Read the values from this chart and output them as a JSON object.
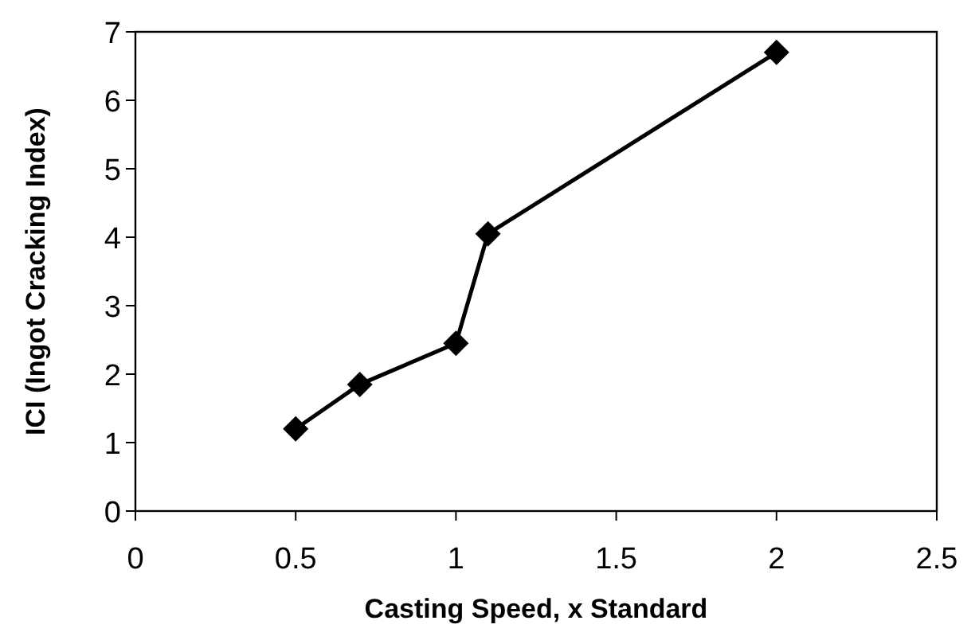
{
  "chart_data": {
    "type": "line",
    "xlabel": "Casting Speed, x Standard",
    "ylabel": "ICI (Ingot Cracking Index)",
    "x": [
      0.5,
      0.7,
      1.0,
      1.1,
      2.0
    ],
    "series": [
      {
        "color": "#000000",
        "values": [
          1.2,
          1.85,
          2.45,
          4.05,
          6.7
        ]
      }
    ],
    "xlim": [
      0,
      2.5
    ],
    "xticks": [
      0,
      0.5,
      1,
      1.5,
      2,
      2.5
    ],
    "ylim": [
      0,
      7
    ],
    "yticks": [
      0,
      1,
      2,
      3,
      4,
      5,
      6,
      7
    ],
    "marker": "diamond",
    "line_style": "solid",
    "grid": false
  }
}
